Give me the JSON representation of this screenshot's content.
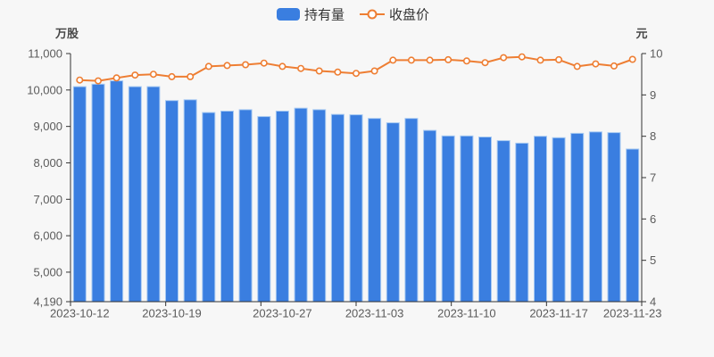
{
  "legend": [
    {
      "label": "持有量",
      "type": "bar"
    },
    {
      "label": "收盘价",
      "type": "line"
    }
  ],
  "left_axis": {
    "title": "万股",
    "tick_values": [
      4190,
      5000,
      6000,
      7000,
      8000,
      9000,
      10000,
      11000
    ],
    "tick_labels": [
      "4,190",
      "5,000",
      "6,000",
      "7,000",
      "8,000",
      "9,000",
      "10,000",
      "11,000"
    ]
  },
  "right_axis": {
    "title": "元",
    "tick_values": [
      4,
      5,
      6,
      7,
      8,
      9,
      10
    ],
    "tick_labels": [
      "4",
      "5",
      "6",
      "7",
      "8",
      "9",
      "10"
    ]
  },
  "x_axis": {
    "visible_labels": [
      {
        "text": "2023-10-12",
        "index": 0
      },
      {
        "text": "2023-10-19",
        "index": 5
      },
      {
        "text": "2023-10-27",
        "index": 11
      },
      {
        "text": "2023-11-03",
        "index": 16
      },
      {
        "text": "2023-11-10",
        "index": 21
      },
      {
        "text": "2023-11-17",
        "index": 26
      },
      {
        "text": "2023-11-23",
        "index": 30
      }
    ],
    "tick_count": 7
  },
  "colors": {
    "bar": "#3a7ee0",
    "bar_border": "#a6c9f2",
    "line": "#ee7e33",
    "marker_fill": "#ffffff",
    "background": "#f7f7f7",
    "axis": "#333333",
    "tick_text": "#5b5b5b",
    "title_text": "#484848",
    "legend_text": "#333333"
  },
  "chart_data": {
    "type": "bar+line combo",
    "title": "",
    "categories": [
      "2023-10-12",
      "2023-10-13",
      "2023-10-16",
      "2023-10-17",
      "2023-10-18",
      "2023-10-19",
      "2023-10-20",
      "2023-10-23",
      "2023-10-24",
      "2023-10-25",
      "2023-10-26",
      "2023-10-27",
      "2023-10-30",
      "2023-10-31",
      "2023-11-01",
      "2023-11-02",
      "2023-11-03",
      "2023-11-06",
      "2023-11-07",
      "2023-11-08",
      "2023-11-09",
      "2023-11-10",
      "2023-11-13",
      "2023-11-14",
      "2023-11-15",
      "2023-11-16",
      "2023-11-17",
      "2023-11-20",
      "2023-11-21",
      "2023-11-22",
      "2023-11-23"
    ],
    "series": [
      {
        "name": "持有量",
        "type": "bar",
        "axis": "left",
        "unit": "万股",
        "values": [
          10090,
          10160,
          10250,
          10090,
          10090,
          9710,
          9730,
          9380,
          9420,
          9460,
          9270,
          9420,
          9500,
          9460,
          9330,
          9320,
          9220,
          9100,
          9220,
          8890,
          8740,
          8740,
          8710,
          8610,
          8540,
          8730,
          8690,
          8810,
          8850,
          8830,
          8380
        ]
      },
      {
        "name": "收盘价",
        "type": "line",
        "axis": "right",
        "unit": "元",
        "values": [
          9.36,
          9.34,
          9.41,
          9.48,
          9.5,
          9.44,
          9.44,
          9.69,
          9.71,
          9.73,
          9.77,
          9.69,
          9.64,
          9.58,
          9.55,
          9.52,
          9.58,
          9.84,
          9.84,
          9.84,
          9.85,
          9.82,
          9.78,
          9.9,
          9.92,
          9.84,
          9.85,
          9.69,
          9.75,
          9.7,
          9.86
        ]
      }
    ],
    "left_ylim": [
      4190,
      11000
    ],
    "right_ylim": [
      4,
      10
    ],
    "grid": false,
    "legend_position": "top-center"
  }
}
